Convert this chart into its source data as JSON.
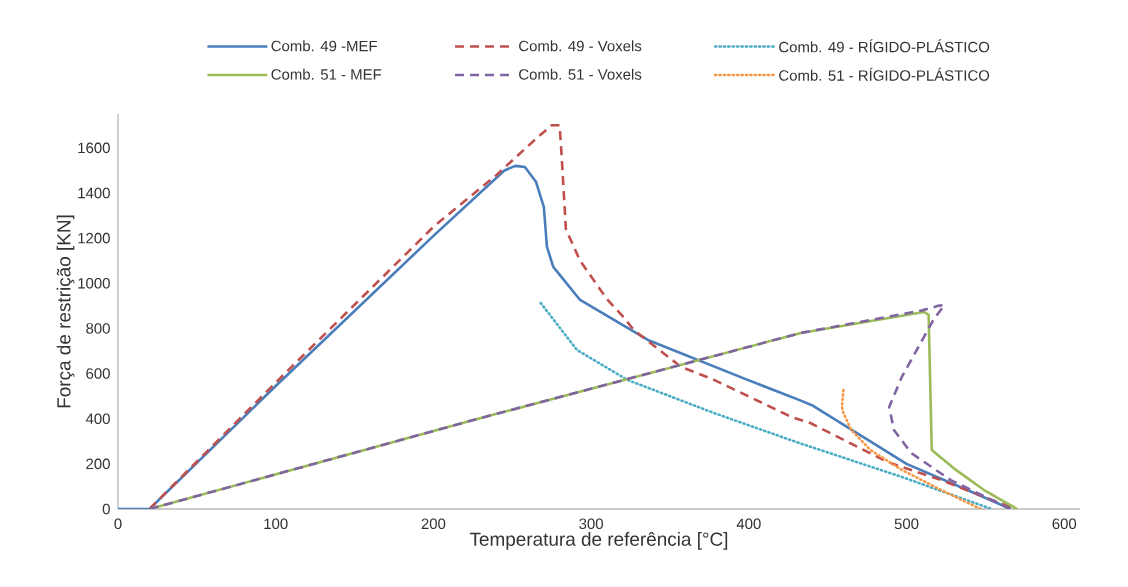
{
  "chart_data": {
    "type": "line",
    "xlabel": "Temperatura de referência [°C]",
    "ylabel": "Força de restrição [KN]",
    "xlim": [
      0,
      610
    ],
    "ylim": [
      0,
      1750
    ],
    "xticks": [
      0,
      100,
      200,
      300,
      400,
      500,
      600
    ],
    "yticks": [
      0,
      200,
      400,
      600,
      800,
      1000,
      1200,
      1400,
      1600
    ],
    "grid": false,
    "legend": "top",
    "marker": "none",
    "series": [
      {
        "name": "Comb. 49 -MEF",
        "color": "#4a7ebb",
        "line_style": "solid",
        "x": [
          0,
          20,
          100,
          200,
          245,
          252,
          258,
          265,
          270,
          272,
          276,
          293,
          336,
          400,
          433,
          440,
          470,
          500,
          540,
          566
        ],
        "values": [
          0,
          0,
          545,
          1210,
          1500,
          1520,
          1515,
          1450,
          1339,
          1161,
          1073,
          926,
          749,
          570,
          480,
          460,
          330,
          200,
          80,
          0
        ]
      },
      {
        "name": "Comb. 49 - Voxels",
        "color": "#c0504d",
        "line_style": "dashed",
        "x": [
          20,
          100,
          200,
          240,
          265,
          275,
          280,
          281,
          284,
          293,
          303,
          310,
          321,
          327,
          357,
          378,
          427,
          439,
          488,
          522,
          569
        ],
        "values": [
          0,
          560,
          1250,
          1480,
          1640,
          1700,
          1700,
          1600,
          1240,
          1100,
          1000,
          930,
          847,
          793,
          630,
          572,
          408,
          381,
          208,
          128,
          0
        ]
      },
      {
        "name": "Comb. 49 - RÍGIDO-PLÁSTICO",
        "color": "#4bacc6",
        "line_style": "dotted",
        "x": [
          268,
          291,
          323,
          378,
          430,
          497,
          554
        ],
        "values": [
          913,
          705,
          572,
          425,
          297,
          142,
          0
        ]
      },
      {
        "name": "Comb. 51 - MEF",
        "color": "#9bbb59",
        "line_style": "solid",
        "x": [
          20,
          230,
          433,
          511,
          514,
          516,
          530,
          550,
          570
        ],
        "values": [
          0,
          403,
          780,
          873,
          860,
          261,
          180,
          80,
          0
        ]
      },
      {
        "name": "Comb. 51 - Voxels",
        "color": "#8064a2",
        "line_style": "dashed",
        "x": [
          20,
          230,
          433,
          510,
          520,
          524,
          517,
          497,
          489,
          492,
          503,
          528,
          566
        ],
        "values": [
          0,
          403,
          780,
          880,
          900,
          904,
          838,
          585,
          452,
          350,
          248,
          128,
          0
        ]
      },
      {
        "name": "Comb. 51 - RÍGIDO-PLÁSTICO",
        "color": "#f79646",
        "line_style": "dotted",
        "x": [
          460,
          459,
          460,
          465,
          477,
          497,
          522,
          547
        ],
        "values": [
          527,
          452,
          425,
          350,
          262,
          173,
          84,
          0
        ]
      }
    ]
  }
}
